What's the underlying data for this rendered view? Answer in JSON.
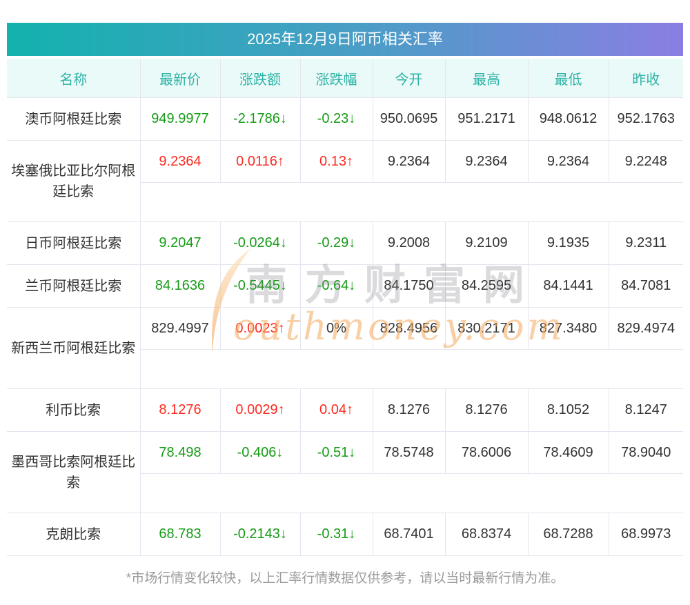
{
  "title": "2025年12月9日阿币相关汇率",
  "footer_note": "*市场行情变化较快，以上汇率行情数据仅供参考，请以当时最新行情为准。",
  "watermark": {
    "s_icon": "southmoney-s-swoosh",
    "cn_text": "南方财富网",
    "en_text": "outhmoney.com",
    "swoosh_color": "#f3a963"
  },
  "colors": {
    "up_red": "#fb2a1f",
    "down_green": "#169b16",
    "neutral_black": "#333333",
    "header_text_teal": "#2fb3a6",
    "header_bg": "#eafaf9",
    "title_gradient_left": "#12b2ae",
    "title_gradient_right": "#8b7ee3",
    "border": "#e5e5ef",
    "footer_gray": "#9b9b9b"
  },
  "chart_data": {
    "type": "table",
    "title": "2025年12月9日阿币相关汇率",
    "columns": [
      "名称",
      "最新价",
      "涨跌额",
      "涨跌幅",
      "今开",
      "最高",
      "最低",
      "昨收"
    ],
    "rows": [
      {
        "name": "澳币阿根廷比索",
        "latest": "949.9977",
        "change": "-2.1786↓",
        "pct": "-0.23↓",
        "open": "950.0695",
        "high": "951.2171",
        "low": "948.0612",
        "prev": "952.1763",
        "latest_color": "green",
        "change_color": "green",
        "pct_color": "green",
        "two_line": false
      },
      {
        "name": "埃塞俄比亚比尔阿根廷比索",
        "latest": "9.2364",
        "change": "0.0116↑",
        "pct": "0.13↑",
        "open": "9.2364",
        "high": "9.2364",
        "low": "9.2364",
        "prev": "9.2248",
        "latest_color": "red",
        "change_color": "red",
        "pct_color": "red",
        "two_line": true
      },
      {
        "name": "日币阿根廷比索",
        "latest": "9.2047",
        "change": "-0.0264↓",
        "pct": "-0.29↓",
        "open": "9.2008",
        "high": "9.2109",
        "low": "9.1935",
        "prev": "9.2311",
        "latest_color": "green",
        "change_color": "green",
        "pct_color": "green",
        "two_line": false
      },
      {
        "name": "兰币阿根廷比索",
        "latest": "84.1636",
        "change": "-0.5445↓",
        "pct": "-0.64↓",
        "open": "84.1750",
        "high": "84.2595",
        "low": "84.1441",
        "prev": "84.7081",
        "latest_color": "green",
        "change_color": "green",
        "pct_color": "green",
        "two_line": false
      },
      {
        "name": "新西兰币阿根廷比索",
        "latest": "829.4997",
        "change": "0.0023↑",
        "pct": "0%",
        "open": "828.4956",
        "high": "830.2171",
        "low": "827.3480",
        "prev": "829.4974",
        "latest_color": "black",
        "change_color": "red",
        "pct_color": "black",
        "two_line": true
      },
      {
        "name": "利币比索",
        "latest": "8.1276",
        "change": "0.0029↑",
        "pct": "0.04↑",
        "open": "8.1276",
        "high": "8.1276",
        "low": "8.1052",
        "prev": "8.1247",
        "latest_color": "red",
        "change_color": "red",
        "pct_color": "red",
        "two_line": false
      },
      {
        "name": "墨西哥比索阿根廷比索",
        "latest": "78.498",
        "change": "-0.406↓",
        "pct": "-0.51↓",
        "open": "78.5748",
        "high": "78.6006",
        "low": "78.4609",
        "prev": "78.9040",
        "latest_color": "green",
        "change_color": "green",
        "pct_color": "green",
        "two_line": true
      },
      {
        "name": "克朗比索",
        "latest": "68.783",
        "change": "-0.2143↓",
        "pct": "-0.31↓",
        "open": "68.7401",
        "high": "68.8374",
        "low": "68.7288",
        "prev": "68.9973",
        "latest_color": "green",
        "change_color": "green",
        "pct_color": "green",
        "two_line": false
      }
    ]
  }
}
